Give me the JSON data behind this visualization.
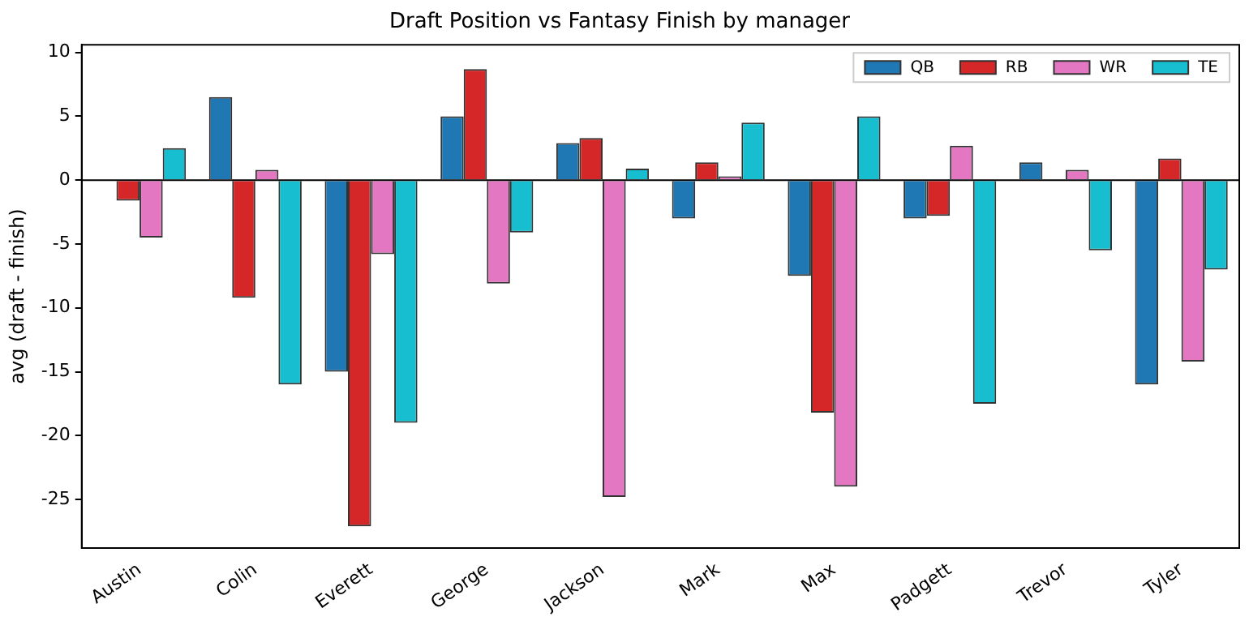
{
  "chart_data": {
    "type": "bar",
    "title": "Draft Position vs Fantasy Finish by manager",
    "ylabel": "avg (draft - finish)",
    "categories": [
      "Austin",
      "Colin",
      "Everett",
      "George",
      "Jackson",
      "Mark",
      "Max",
      "Padgett",
      "Trevor",
      "Tyler"
    ],
    "series": [
      {
        "name": "QB",
        "color": "#1f77b4",
        "values": [
          0,
          6.5,
          -15,
          5,
          2.9,
          -3,
          -7.5,
          -3,
          1.4,
          -16
        ]
      },
      {
        "name": "RB",
        "color": "#d62728",
        "values": [
          -1.6,
          -9.2,
          -27.1,
          8.7,
          3.3,
          1.4,
          -18.2,
          -2.8,
          0,
          1.7
        ]
      },
      {
        "name": "WR",
        "color": "#e377c2",
        "values": [
          -4.5,
          0.8,
          -5.8,
          -8.1,
          -24.8,
          0.3,
          -24,
          2.7,
          0.8,
          -14.2
        ]
      },
      {
        "name": "TE",
        "color": "#17becf",
        "values": [
          2.5,
          -16,
          -19,
          -4.1,
          0.9,
          4.5,
          5,
          -17.5,
          -5.5,
          -7
        ]
      }
    ],
    "ylim": [
      -28.8,
      10.6
    ],
    "yticks": [
      -25,
      -20,
      -15,
      -10,
      -5,
      0,
      5,
      10
    ],
    "ref_lines": [
      {
        "axis": "y",
        "value": 0,
        "color": "#000000"
      }
    ],
    "legend": "top right",
    "grid": false
  }
}
